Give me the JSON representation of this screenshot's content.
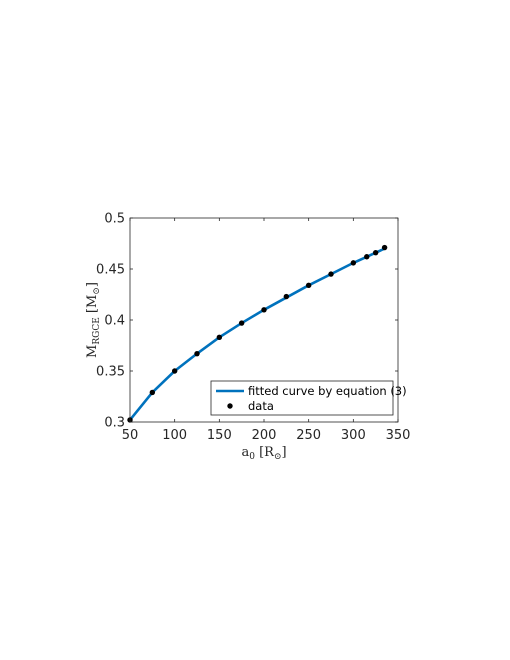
{
  "chart_data": {
    "type": "line",
    "x_axis": {
      "label_main": "a",
      "label_sub": "0",
      "label_unit_open": " [R",
      "label_unit_sym": "⊙",
      "label_unit_close": "]",
      "ticks": [
        50,
        100,
        150,
        200,
        250,
        300,
        350
      ],
      "tick_labels": [
        "50",
        "100",
        "150",
        "200",
        "250",
        "300",
        "350"
      ],
      "range": [
        50,
        350
      ]
    },
    "y_axis": {
      "label_main": "M",
      "label_sub": "RGCE",
      "label_unit_open": " [M",
      "label_unit_sym": "⊙",
      "label_unit_close": "]",
      "ticks": [
        0.3,
        0.35,
        0.4,
        0.45,
        0.5
      ],
      "tick_labels": [
        "0.3",
        "0.35",
        "0.4",
        "0.45",
        "0.5"
      ],
      "range": [
        0.3,
        0.5
      ]
    },
    "grid": false,
    "legend_position": "bottom-right",
    "series": [
      {
        "name": "fitted curve by equation (3)",
        "kind": "line",
        "color": "#0072BD",
        "x": [
          50,
          75,
          100,
          125,
          150,
          175,
          200,
          225,
          250,
          275,
          300,
          315,
          325,
          335
        ],
        "y": [
          0.302,
          0.329,
          0.35,
          0.367,
          0.383,
          0.397,
          0.41,
          0.422,
          0.434,
          0.445,
          0.456,
          0.462,
          0.466,
          0.47
        ]
      },
      {
        "name": "data",
        "kind": "scatter",
        "color": "#000000",
        "x": [
          50,
          75,
          100,
          125,
          150,
          175,
          200,
          225,
          250,
          275,
          300,
          315,
          325,
          335
        ],
        "y": [
          0.302,
          0.329,
          0.35,
          0.367,
          0.383,
          0.397,
          0.41,
          0.423,
          0.434,
          0.445,
          0.456,
          0.462,
          0.466,
          0.471
        ]
      }
    ]
  }
}
